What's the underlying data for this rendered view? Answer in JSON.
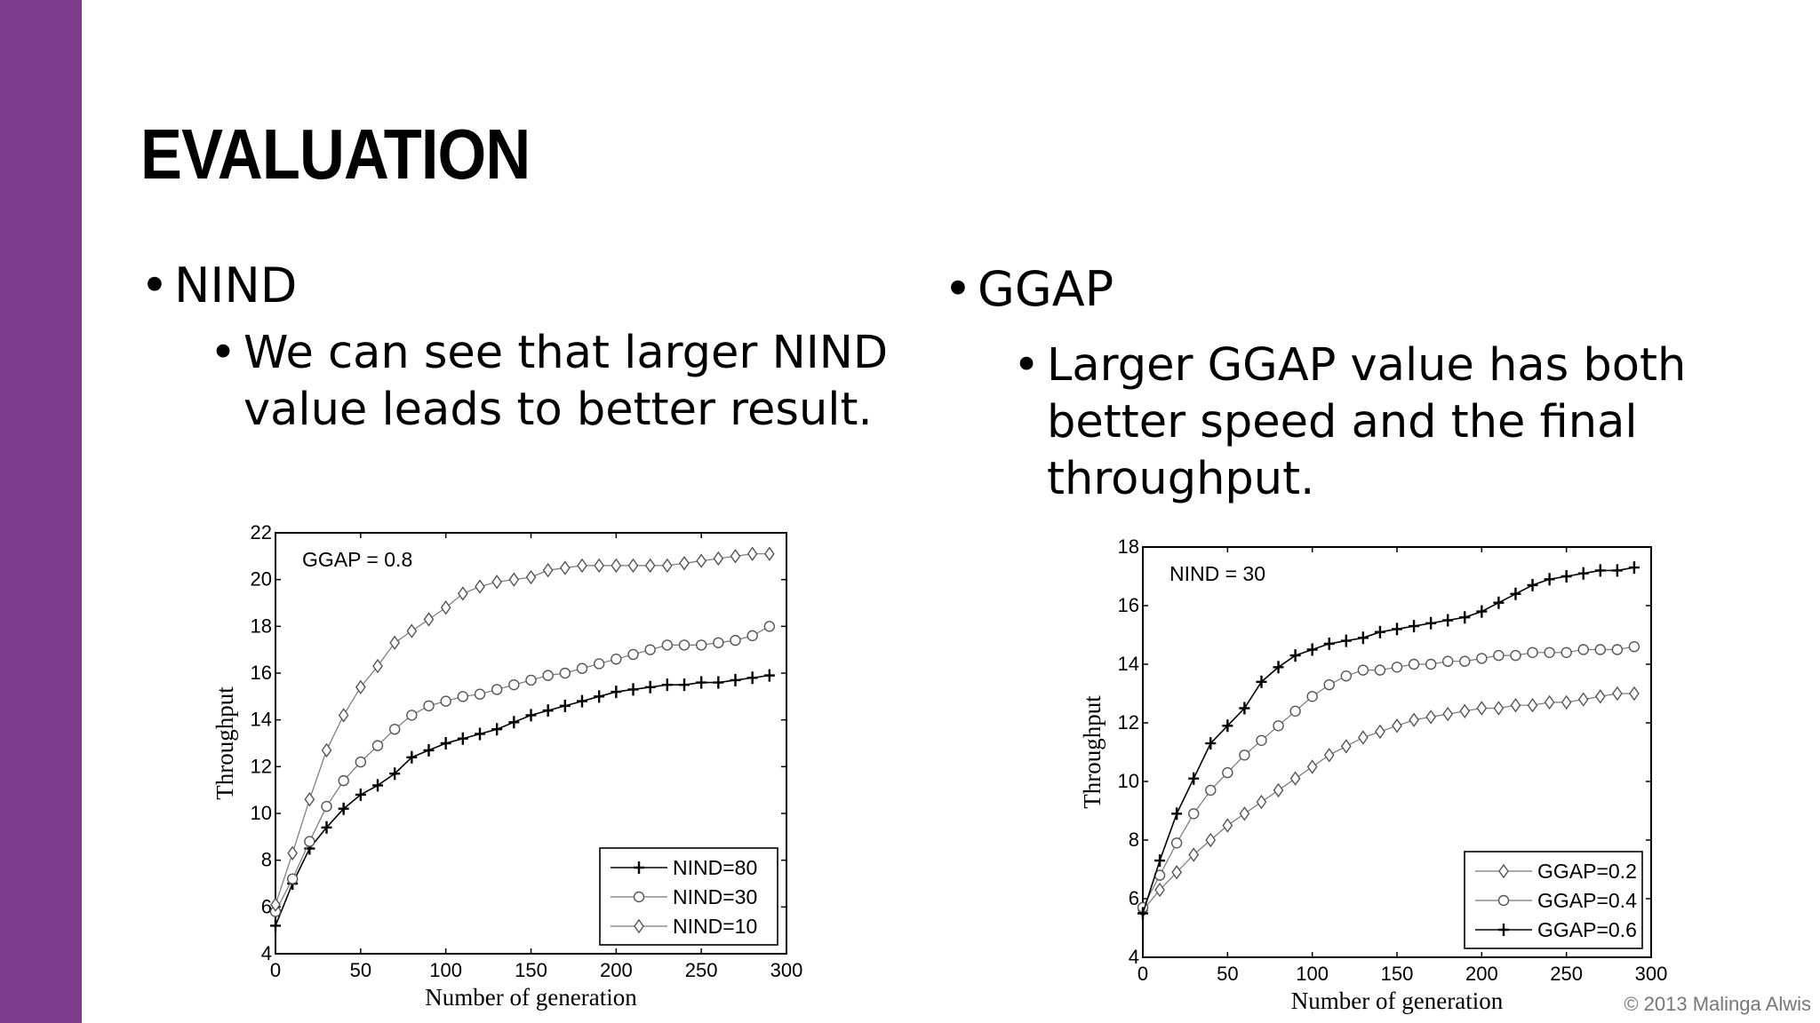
{
  "slide": {
    "title": "EVALUATION",
    "copyright": "© 2013 Malinga Alwis",
    "accent_color": "#7d3c8c"
  },
  "left": {
    "bullet": "NIND",
    "sub_bullet": [
      "We can see that larger NIND",
      "value leads to better result."
    ]
  },
  "right": {
    "bullet": "GGAP",
    "sub_bullet": [
      "Larger GGAP value has both",
      "better speed and the final",
      "throughput."
    ]
  },
  "chart_data": [
    {
      "type": "line",
      "annotation": "GGAP = 0.8",
      "xlabel": "Number of generation",
      "ylabel": "Throughput",
      "xlim": [
        0,
        300
      ],
      "ylim": [
        4,
        22
      ],
      "xticks": [
        0,
        50,
        100,
        150,
        200,
        250,
        300
      ],
      "yticks": [
        4,
        6,
        8,
        10,
        12,
        14,
        16,
        18,
        20,
        22
      ],
      "legend_position": "bottom-right",
      "x": [
        0,
        10,
        20,
        30,
        40,
        50,
        60,
        70,
        80,
        90,
        100,
        110,
        120,
        130,
        140,
        150,
        160,
        170,
        180,
        190,
        200,
        210,
        220,
        230,
        240,
        250,
        260,
        270,
        280,
        290
      ],
      "series": [
        {
          "name": "NIND=80",
          "marker": "plus",
          "values": [
            5.2,
            7.0,
            8.5,
            9.4,
            10.2,
            10.8,
            11.2,
            11.7,
            12.4,
            12.7,
            13.0,
            13.2,
            13.4,
            13.6,
            13.9,
            14.2,
            14.4,
            14.6,
            14.8,
            15.0,
            15.2,
            15.3,
            15.4,
            15.5,
            15.5,
            15.6,
            15.6,
            15.7,
            15.8,
            15.9
          ]
        },
        {
          "name": "NIND=30",
          "marker": "circle",
          "values": [
            5.8,
            7.2,
            8.8,
            10.3,
            11.4,
            12.2,
            12.9,
            13.6,
            14.2,
            14.6,
            14.8,
            15.0,
            15.1,
            15.3,
            15.5,
            15.7,
            15.9,
            16.0,
            16.2,
            16.4,
            16.6,
            16.8,
            17.0,
            17.2,
            17.2,
            17.2,
            17.3,
            17.4,
            17.6,
            18.0
          ]
        },
        {
          "name": "NIND=10",
          "marker": "diamond",
          "values": [
            6.1,
            8.3,
            10.6,
            12.7,
            14.2,
            15.4,
            16.3,
            17.3,
            17.8,
            18.3,
            18.8,
            19.4,
            19.7,
            19.9,
            20.0,
            20.1,
            20.4,
            20.5,
            20.6,
            20.6,
            20.6,
            20.6,
            20.6,
            20.6,
            20.7,
            20.8,
            20.9,
            21.0,
            21.1,
            21.1
          ]
        }
      ]
    },
    {
      "type": "line",
      "annotation": "NIND = 30",
      "xlabel": "Number of generation",
      "ylabel": "Throughput",
      "xlim": [
        0,
        300
      ],
      "ylim": [
        4,
        18
      ],
      "xticks": [
        0,
        50,
        100,
        150,
        200,
        250,
        300
      ],
      "yticks": [
        4,
        6,
        8,
        10,
        12,
        14,
        16,
        18
      ],
      "legend_position": "bottom-right",
      "x": [
        0,
        10,
        20,
        30,
        40,
        50,
        60,
        70,
        80,
        90,
        100,
        110,
        120,
        130,
        140,
        150,
        160,
        170,
        180,
        190,
        200,
        210,
        220,
        230,
        240,
        250,
        260,
        270,
        280,
        290
      ],
      "series": [
        {
          "name": "GGAP=0.2",
          "marker": "diamond",
          "values": [
            5.6,
            6.3,
            6.9,
            7.5,
            8.0,
            8.5,
            8.9,
            9.3,
            9.7,
            10.1,
            10.5,
            10.9,
            11.2,
            11.5,
            11.7,
            11.9,
            12.1,
            12.2,
            12.3,
            12.4,
            12.5,
            12.5,
            12.6,
            12.6,
            12.7,
            12.7,
            12.8,
            12.9,
            13.0,
            13.0
          ]
        },
        {
          "name": "GGAP=0.4",
          "marker": "circle",
          "values": [
            5.7,
            6.8,
            7.9,
            8.9,
            9.7,
            10.3,
            10.9,
            11.4,
            11.9,
            12.4,
            12.9,
            13.3,
            13.6,
            13.8,
            13.8,
            13.9,
            14.0,
            14.0,
            14.1,
            14.1,
            14.2,
            14.3,
            14.3,
            14.4,
            14.4,
            14.4,
            14.5,
            14.5,
            14.5,
            14.6
          ]
        },
        {
          "name": "GGAP=0.6",
          "marker": "plus",
          "values": [
            5.5,
            7.3,
            8.9,
            10.1,
            11.3,
            11.9,
            12.5,
            13.4,
            13.9,
            14.3,
            14.5,
            14.7,
            14.8,
            14.9,
            15.1,
            15.2,
            15.3,
            15.4,
            15.5,
            15.6,
            15.8,
            16.1,
            16.4,
            16.7,
            16.9,
            17.0,
            17.1,
            17.2,
            17.2,
            17.3
          ]
        }
      ]
    }
  ]
}
